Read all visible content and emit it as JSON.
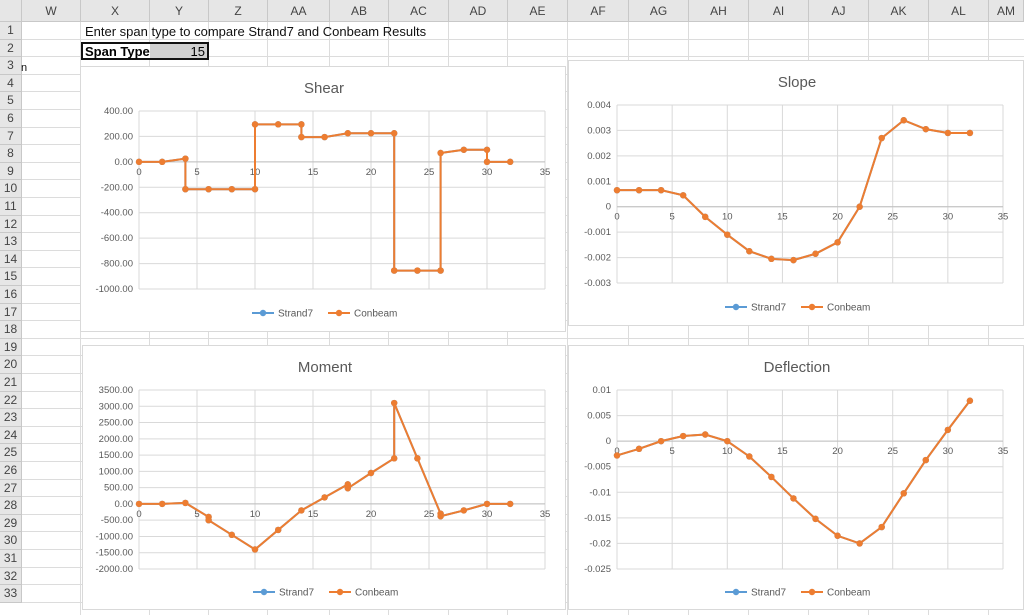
{
  "sheet": {
    "columns": [
      "W",
      "X",
      "Y",
      "Z",
      "AA",
      "AB",
      "AC",
      "AD",
      "AE",
      "AF",
      "AG",
      "AH",
      "AI",
      "AJ",
      "AK",
      "AL",
      "AM"
    ],
    "rows": [
      "1",
      "2",
      "3",
      "4",
      "5",
      "6",
      "7",
      "8",
      "9",
      "10",
      "11",
      "12",
      "13",
      "14",
      "15",
      "16",
      "17",
      "18",
      "19",
      "20",
      "21",
      "22",
      "23",
      "24",
      "25",
      "26",
      "27",
      "28",
      "29",
      "30",
      "31",
      "32",
      "33"
    ],
    "instruction": "Enter span type to compare Strand7 and Conbeam Results",
    "span_label": "Span Type",
    "span_value": "15",
    "stray_mark": "n"
  },
  "colors": {
    "strand7": "#5b9bd5",
    "conbeam": "#ed7d31",
    "grid": "#d9d9d9",
    "text": "#595959"
  },
  "chart_data": [
    {
      "type": "line",
      "title": "Shear",
      "xlim": [
        0,
        35
      ],
      "xticks": [
        "0",
        "5",
        "10",
        "15",
        "20",
        "25",
        "30",
        "35"
      ],
      "ylim": [
        -1000,
        400
      ],
      "yticks": [
        "400.00",
        "200.00",
        "0.00",
        "-200.00",
        "-400.00",
        "-600.00",
        "-800.00",
        "-1000.00"
      ],
      "series": [
        {
          "name": "Strand7",
          "x": [
            0,
            2,
            4,
            4,
            6,
            8,
            10,
            10,
            12,
            14,
            14,
            16,
            18,
            20,
            22,
            22,
            24,
            26,
            26,
            28,
            30,
            30,
            32
          ],
          "y": [
            0,
            0,
            25,
            -215,
            -215,
            -215,
            -215,
            295,
            295,
            295,
            195,
            195,
            225,
            225,
            225,
            -855,
            -855,
            -855,
            70,
            95,
            95,
            0,
            0
          ]
        },
        {
          "name": "Conbeam",
          "x": [
            0,
            2,
            4,
            4,
            6,
            8,
            10,
            10,
            12,
            14,
            14,
            16,
            18,
            20,
            22,
            22,
            24,
            26,
            26,
            28,
            30,
            30,
            32
          ],
          "y": [
            0,
            0,
            25,
            -215,
            -215,
            -215,
            -215,
            295,
            295,
            295,
            195,
            195,
            225,
            225,
            225,
            -855,
            -855,
            -855,
            70,
            95,
            95,
            0,
            0
          ]
        }
      ]
    },
    {
      "type": "line",
      "title": "Slope",
      "xlim": [
        0,
        35
      ],
      "xticks": [
        "0",
        "5",
        "10",
        "15",
        "20",
        "25",
        "30",
        "35"
      ],
      "ylim": [
        -0.003,
        0.004
      ],
      "yticks": [
        "0.004",
        "0.003",
        "0.002",
        "0.001",
        "0",
        "-0.001",
        "-0.002",
        "-0.003"
      ],
      "series": [
        {
          "name": "Strand7",
          "x": [
            0,
            2,
            4,
            6,
            8,
            10,
            12,
            14,
            16,
            18,
            20,
            22,
            24,
            26,
            28,
            30,
            32
          ],
          "y": [
            0.00065,
            0.00065,
            0.00065,
            0.00045,
            -0.0004,
            -0.0011,
            -0.00175,
            -0.00205,
            -0.0021,
            -0.00185,
            -0.0014,
            0.0,
            0.0027,
            0.0034,
            0.00305,
            0.0029,
            0.0029
          ]
        },
        {
          "name": "Conbeam",
          "x": [
            0,
            2,
            4,
            6,
            8,
            10,
            12,
            14,
            16,
            18,
            20,
            22,
            24,
            26,
            28,
            30,
            32
          ],
          "y": [
            0.00065,
            0.00065,
            0.00065,
            0.00045,
            -0.0004,
            -0.0011,
            -0.00175,
            -0.00205,
            -0.0021,
            -0.00185,
            -0.0014,
            0.0,
            0.0027,
            0.0034,
            0.00305,
            0.0029,
            0.0029
          ]
        }
      ]
    },
    {
      "type": "line",
      "title": "Moment",
      "xlim": [
        0,
        35
      ],
      "xticks": [
        "0",
        "5",
        "10",
        "15",
        "20",
        "25",
        "30",
        "35"
      ],
      "ylim": [
        -2000,
        3500
      ],
      "yticks": [
        "3500.00",
        "3000.00",
        "2500.00",
        "2000.00",
        "1500.00",
        "1000.00",
        "500.00",
        "0.00",
        "-500.00",
        "-1000.00",
        "-1500.00",
        "-2000.00"
      ],
      "series": [
        {
          "name": "Strand7",
          "x": [
            0,
            2,
            4,
            6,
            6,
            8,
            10,
            12,
            14,
            16,
            18,
            18,
            20,
            22,
            22,
            24,
            26,
            26,
            28,
            30,
            32
          ],
          "y": [
            0,
            0,
            30,
            -400,
            -500,
            -950,
            -1400,
            -800,
            -200,
            200,
            600,
            480,
            950,
            1400,
            3100,
            1400,
            -300,
            -380,
            -200,
            0,
            0
          ]
        },
        {
          "name": "Conbeam",
          "x": [
            0,
            2,
            4,
            6,
            6,
            8,
            10,
            12,
            14,
            16,
            18,
            18,
            20,
            22,
            22,
            24,
            26,
            26,
            28,
            30,
            32
          ],
          "y": [
            0,
            0,
            30,
            -400,
            -500,
            -950,
            -1400,
            -800,
            -200,
            200,
            600,
            480,
            950,
            1400,
            3100,
            1400,
            -300,
            -380,
            -200,
            0,
            0
          ]
        }
      ]
    },
    {
      "type": "line",
      "title": "Deflection",
      "xlim": [
        0,
        35
      ],
      "xticks": [
        "0",
        "5",
        "10",
        "15",
        "20",
        "25",
        "30",
        "35"
      ],
      "ylim": [
        -0.025,
        0.01
      ],
      "yticks": [
        "0.01",
        "0.005",
        "0",
        "-0.005",
        "-0.01",
        "-0.015",
        "-0.02",
        "-0.025"
      ],
      "series": [
        {
          "name": "Strand7",
          "x": [
            0,
            2,
            4,
            6,
            8,
            10,
            12,
            14,
            16,
            18,
            20,
            22,
            24,
            26,
            28,
            30,
            32
          ],
          "y": [
            -0.0028,
            -0.0015,
            0.0,
            0.001,
            0.0013,
            0.0,
            -0.003,
            -0.007,
            -0.0112,
            -0.0152,
            -0.0185,
            -0.02,
            -0.0168,
            -0.0102,
            -0.0037,
            0.0022,
            0.0079
          ]
        },
        {
          "name": "Conbeam",
          "x": [
            0,
            2,
            4,
            6,
            8,
            10,
            12,
            14,
            16,
            18,
            20,
            22,
            24,
            26,
            28,
            30,
            32
          ],
          "y": [
            -0.0028,
            -0.0015,
            0.0,
            0.001,
            0.0013,
            0.0,
            -0.003,
            -0.007,
            -0.0112,
            -0.0152,
            -0.0185,
            -0.02,
            -0.0168,
            -0.0102,
            -0.0037,
            0.0022,
            0.0079
          ]
        }
      ]
    }
  ]
}
